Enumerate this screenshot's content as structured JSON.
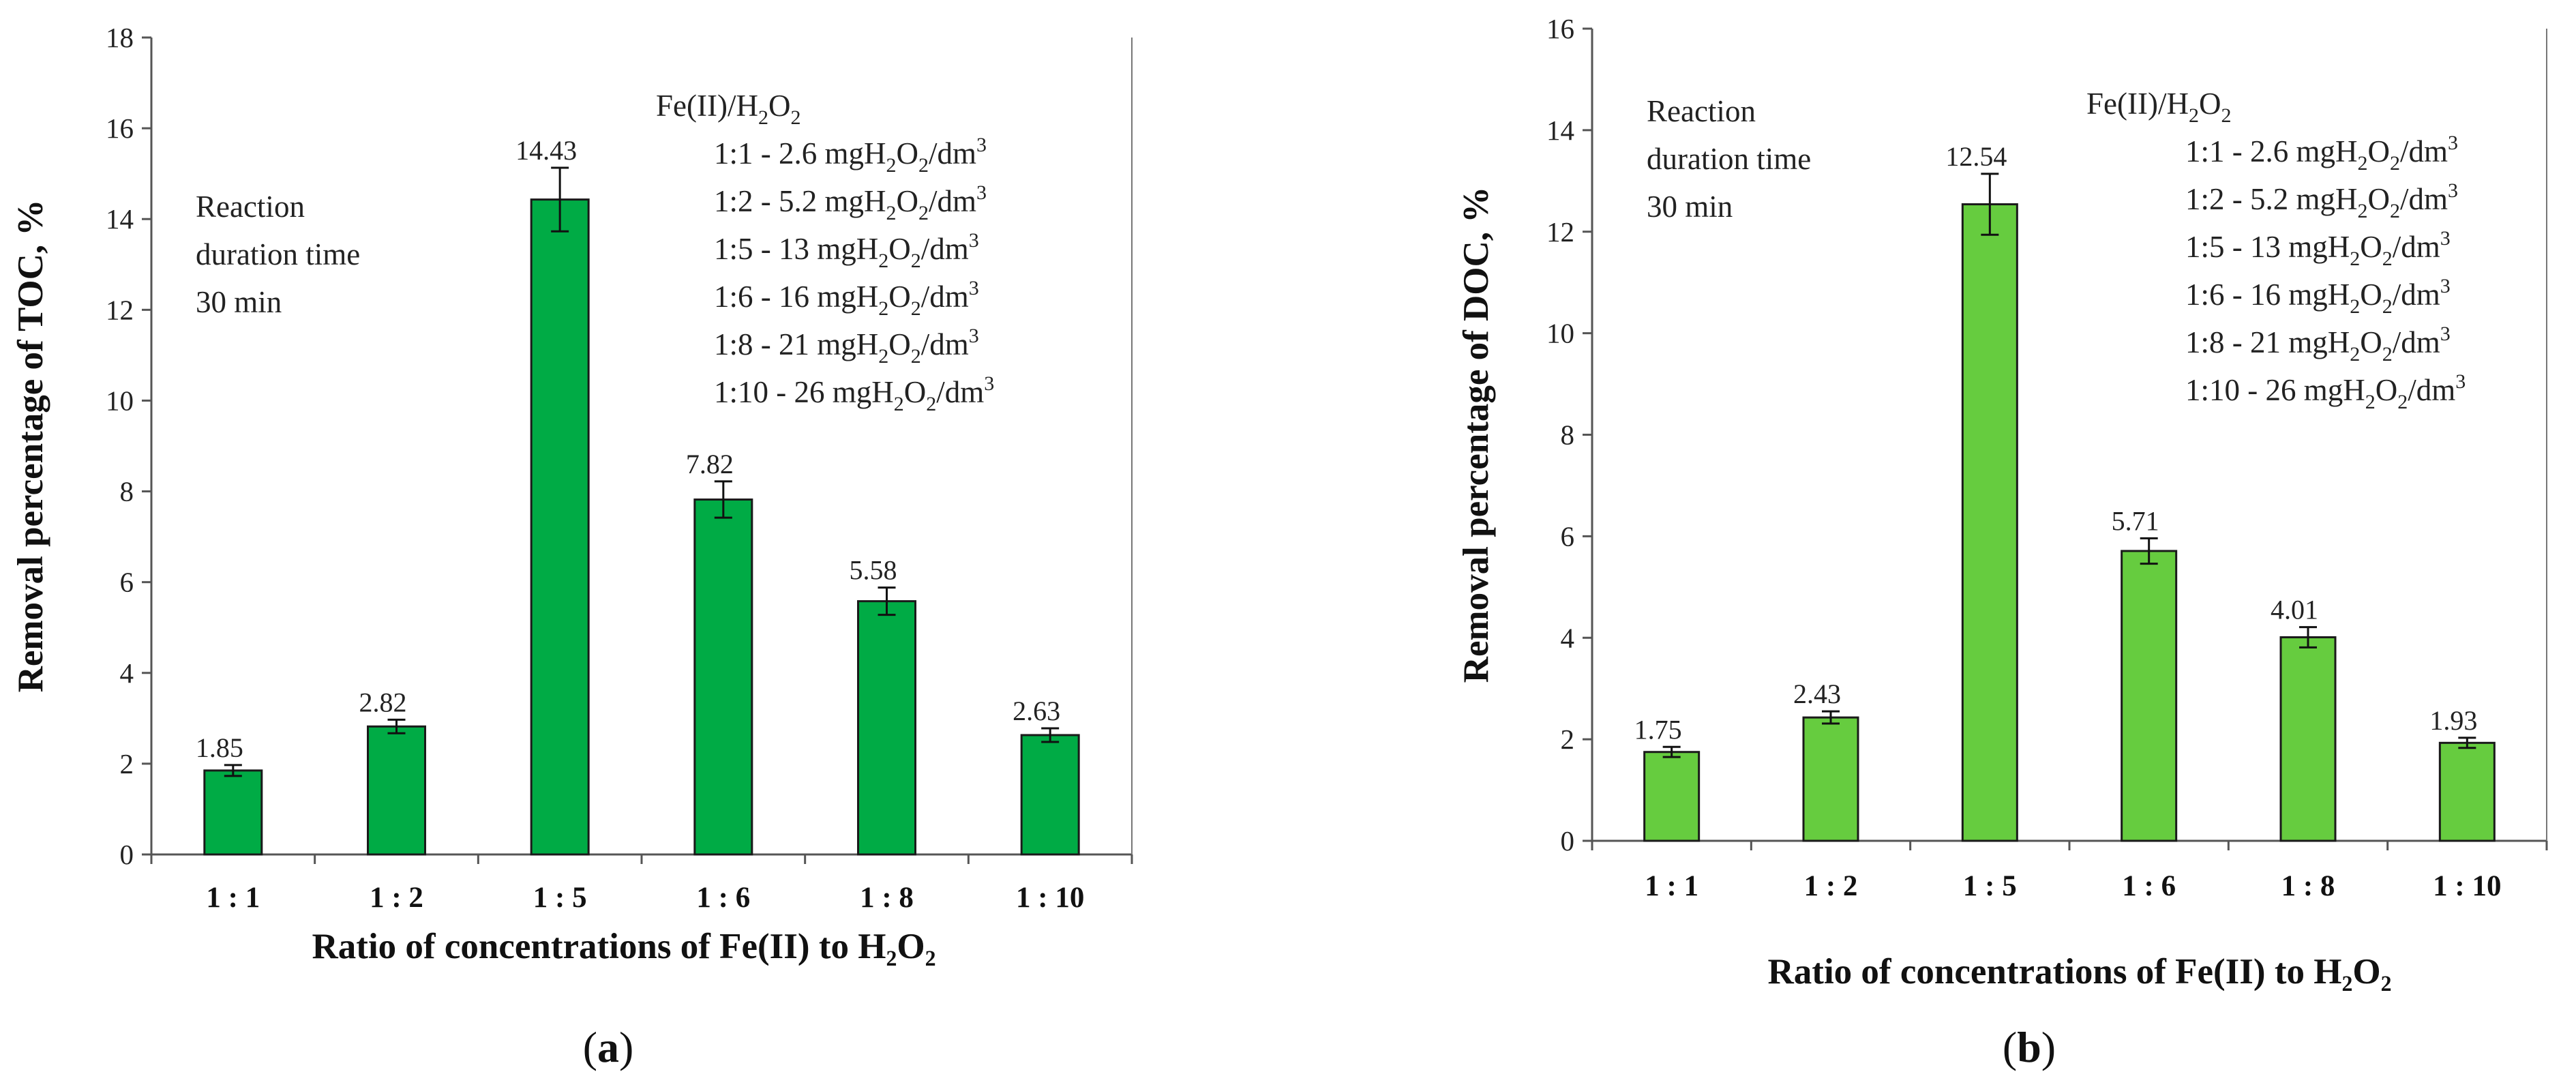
{
  "chart_data": [
    {
      "type": "bar",
      "panel_label": "a",
      "categories": [
        "1 : 1",
        "1 : 2",
        "1 : 5",
        "1 : 6",
        "1 : 8",
        "1 : 10"
      ],
      "values": [
        1.85,
        2.82,
        14.43,
        7.82,
        5.58,
        2.63
      ],
      "value_labels": [
        "1.85",
        "2.82",
        "14.43",
        "7.82",
        "5.58",
        "2.63"
      ],
      "error_bars": [
        0.12,
        0.15,
        0.7,
        0.4,
        0.3,
        0.15
      ],
      "ylim": [
        0,
        18
      ],
      "yticks": [
        "0",
        "2",
        "4",
        "6",
        "8",
        "10",
        "12",
        "14",
        "16",
        "18"
      ],
      "ylabel": "Removal percentage of  TOC,  %",
      "xlabel": "Ratio of concentrations of Fe(II) to H₂O₂",
      "bar_color": "#00ab45",
      "note": [
        "Reaction",
        "duration time",
        "30 min"
      ],
      "legend_title": {
        "pre": "Fe(II)/H",
        "s1": "2",
        "mid": "O",
        "s2": "2"
      },
      "legend_entries": [
        {
          "pre": "1:1 - 2.6 mgH",
          "post": "/dm"
        },
        {
          "pre": "1:2 - 5.2 mgH",
          "post": "/dm"
        },
        {
          "pre": "1:5 - 13 mgH",
          "post": "/dm"
        },
        {
          "pre": "1:6 - 16 mgH",
          "post": "/dm"
        },
        {
          "pre": "1:8 - 21 mgH",
          "post": "/dm"
        },
        {
          "pre": "1:10 - 26 mgH",
          "post": "/dm"
        }
      ]
    },
    {
      "type": "bar",
      "panel_label": "b",
      "categories": [
        "1 : 1",
        "1 : 2",
        "1 : 5",
        "1 : 6",
        "1 : 8",
        "1 : 10"
      ],
      "values": [
        1.75,
        2.43,
        12.54,
        5.71,
        4.01,
        1.93
      ],
      "value_labels": [
        "1.75",
        "2.43",
        "12.54",
        "5.71",
        "4.01",
        "1.93"
      ],
      "error_bars": [
        0.1,
        0.12,
        0.6,
        0.25,
        0.2,
        0.1
      ],
      "ylim": [
        0,
        16
      ],
      "yticks": [
        "0",
        "2",
        "4",
        "6",
        "8",
        "10",
        "12",
        "14",
        "16"
      ],
      "ylabel": "Removal percentage of  DOC,  %",
      "xlabel": "Ratio of concentrations of Fe(II) to H₂O₂",
      "bar_color": "#66cc3f",
      "note": [
        "Reaction",
        "duration time",
        "30 min"
      ],
      "legend_title": {
        "pre": "Fe(II)/H",
        "s1": "2",
        "mid": "O",
        "s2": "2"
      },
      "legend_entries": [
        {
          "pre": "1:1 - 2.6 mgH",
          "post": "/dm"
        },
        {
          "pre": "1:2 - 5.2 mgH",
          "post": "/dm"
        },
        {
          "pre": "1:5 - 13 mgH",
          "post": "/dm"
        },
        {
          "pre": "1:6 - 16 mgH",
          "post": "/dm"
        },
        {
          "pre": "1:8 - 21 mgH",
          "post": "/dm"
        },
        {
          "pre": "1:10 - 26 mgH",
          "post": "/dm"
        }
      ]
    }
  ],
  "unit_sub": "2",
  "unit_mid": "O",
  "unit_sup": "3"
}
